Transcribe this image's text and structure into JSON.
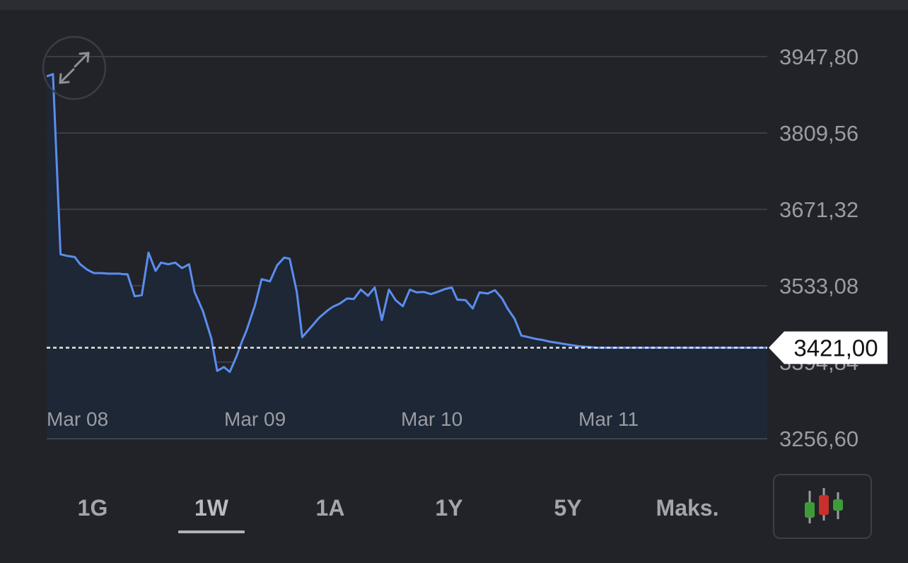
{
  "chart_data": {
    "type": "line",
    "x_labels": [
      "Mar 08",
      "Mar 09",
      "Mar 10",
      "Mar 11"
    ],
    "y_ticks": [
      "3947,80",
      "3809,56",
      "3671,32",
      "3533,08",
      "3394,84",
      "3256,60"
    ],
    "y_tick_values": [
      3947.8,
      3809.56,
      3671.32,
      3533.08,
      3394.84,
      3256.6
    ],
    "ylim": [
      3256.6,
      3947.8
    ],
    "current_value": 3421.0,
    "current_label": "3421,00",
    "line_color": "#5b8def",
    "grid": true,
    "x": [
      0.0,
      0.15,
      0.33,
      0.5,
      0.67,
      0.8,
      0.97,
      1.13,
      1.3,
      1.47,
      1.6,
      1.73,
      1.83,
      1.93,
      2.1,
      2.27,
      2.43,
      2.6,
      2.73,
      2.9,
      3.07,
      3.23,
      3.4,
      3.53,
      3.73,
      3.93,
      4.07,
      4.23,
      4.37,
      4.53,
      4.67,
      4.77,
      4.97,
      5.13,
      5.33,
      5.5,
      5.67,
      5.8,
      5.97,
      6.1,
      6.33,
      6.5,
      6.7,
      6.83,
      7.0,
      7.17,
      7.33,
      7.5,
      7.67,
      7.83,
      8.0,
      8.17,
      8.33,
      8.5,
      8.67,
      8.83,
      9.0,
      9.17,
      9.33,
      9.5,
      9.67,
      9.8,
      10.0,
      10.17,
      10.33,
      10.53,
      10.7,
      10.87,
      11.0,
      11.17,
      11.33,
      11.5,
      11.67,
      11.83,
      12.0,
      12.17,
      12.33,
      12.5,
      12.67,
      12.8,
      12.97,
      13.13,
      13.33,
      13.5,
      13.67,
      13.83,
      14.0,
      14.17,
      14.33,
      14.53,
      14.7,
      14.87,
      15.03,
      15.2,
      15.37,
      15.53,
      15.7,
      15.87,
      16.03,
      16.2,
      16.37,
      16.53,
      16.7,
      16.87,
      17.03,
      17.2
    ],
    "values": [
      3912,
      3916,
      3590,
      3587,
      3585,
      3572,
      3562,
      3556,
      3556,
      3555,
      3555,
      3555,
      3554,
      3554,
      3514,
      3516,
      3593,
      3560,
      3575,
      3572,
      3575,
      3565,
      3572,
      3522,
      3487,
      3438,
      3379,
      3386,
      3377,
      3405,
      3434,
      3452,
      3497,
      3545,
      3541,
      3570,
      3584,
      3582,
      3522,
      3440,
      3460,
      3475,
      3488,
      3495,
      3501,
      3510,
      3509,
      3526,
      3515,
      3530,
      3471,
      3526,
      3507,
      3496,
      3526,
      3521,
      3522,
      3518,
      3522,
      3527,
      3530,
      3508,
      3507,
      3492,
      3521,
      3519,
      3525,
      3510,
      3492,
      3473,
      3443,
      3440,
      3437,
      3435,
      3432,
      3430,
      3428,
      3426,
      3424,
      3423,
      3422,
      3421,
      3421,
      3421,
      3421,
      3421,
      3421,
      3421,
      3421,
      3421,
      3421,
      3421,
      3421,
      3421,
      3421,
      3421,
      3421,
      3421,
      3421,
      3421,
      3421,
      3421,
      3421,
      3421,
      3421,
      3421
    ]
  },
  "range_tabs": [
    {
      "label": "1G",
      "active": false
    },
    {
      "label": "1W",
      "active": true
    },
    {
      "label": "1A",
      "active": false
    },
    {
      "label": "1Y",
      "active": false
    },
    {
      "label": "5Y",
      "active": false
    },
    {
      "label": "Maks.",
      "active": false
    }
  ],
  "icons": {
    "expand": "expand-icon",
    "candlestick": "candlestick-icon"
  },
  "colors": {
    "background": "#212328",
    "line": "#5b8def",
    "label_bg": "#ffffff",
    "candle_green": "#3f9b3a",
    "candle_red": "#c8302b"
  }
}
